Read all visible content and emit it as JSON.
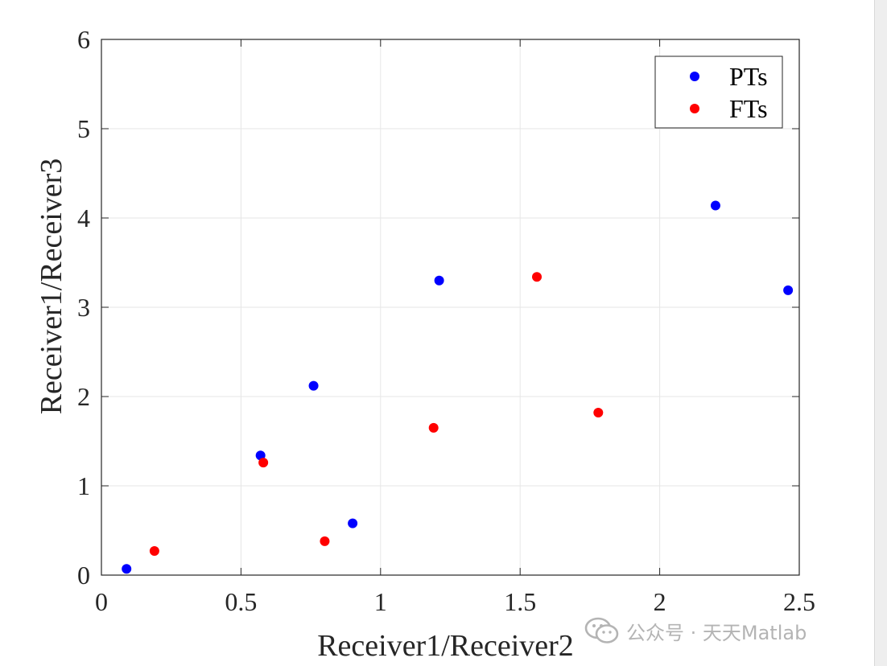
{
  "chart_data": {
    "type": "scatter",
    "xlabel": "Receiver1/Receiver2",
    "ylabel": "Receiver1/Receiver3",
    "xlim": [
      0,
      2.5
    ],
    "ylim": [
      0,
      6
    ],
    "xticks": [
      "0",
      "0.5",
      "1",
      "1.5",
      "2",
      "2.5"
    ],
    "yticks": [
      "0",
      "1",
      "2",
      "3",
      "4",
      "5",
      "6"
    ],
    "grid": true,
    "legend": {
      "placement": "top-right"
    },
    "series": [
      {
        "name": "PTs",
        "color": "#0000ff",
        "x": [
          0.09,
          0.57,
          0.76,
          0.9,
          1.21,
          2.2,
          2.46
        ],
        "y": [
          0.07,
          1.34,
          2.12,
          0.58,
          3.3,
          4.14,
          3.19
        ]
      },
      {
        "name": "FTs",
        "color": "#ff0000",
        "x": [
          0.19,
          0.58,
          0.8,
          1.19,
          1.56,
          1.78
        ],
        "y": [
          0.27,
          1.26,
          0.38,
          1.65,
          3.34,
          1.82
        ]
      }
    ]
  },
  "watermark": {
    "icon": "wechat-icon",
    "text": "公众号 · 天天Matlab"
  }
}
